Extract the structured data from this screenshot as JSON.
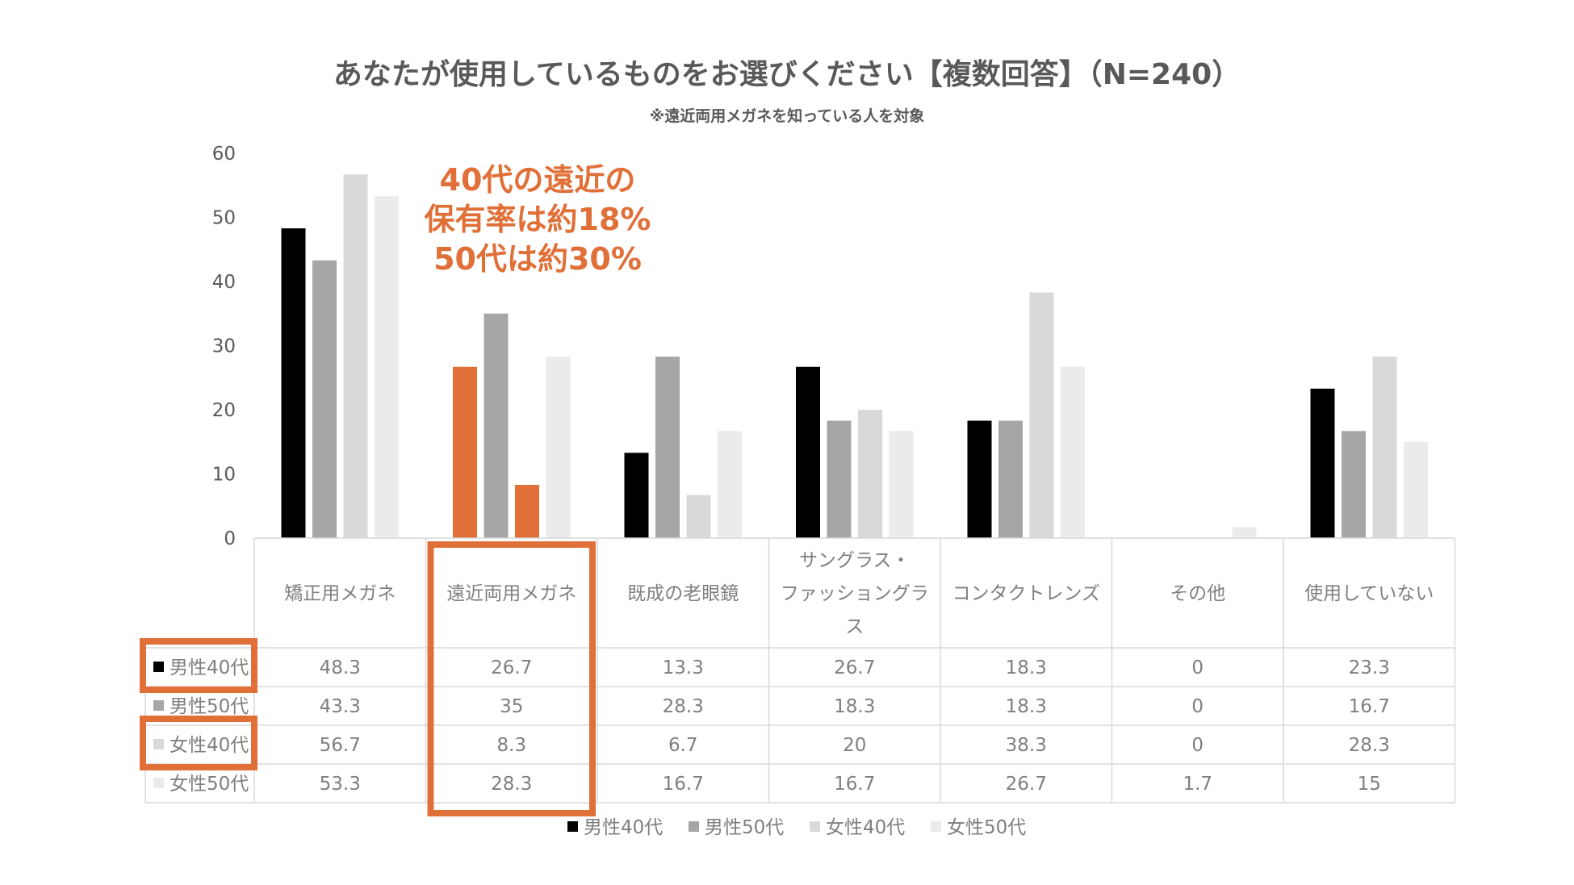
{
  "chart_data": {
    "type": "bar",
    "title": "あなたが使用しているものをお選びください【複数回答】（N=240）",
    "subtitle": "※遠近両用メガネを知っている人を対象",
    "categories": [
      "矯正用メガネ",
      "遠近両用メガネ",
      "既成の老眼鏡",
      "サングラス・ファッショングラス",
      "コンタクトレンズ",
      "その他",
      "使用していない"
    ],
    "category_lines": [
      [
        "矯正用メガネ"
      ],
      [
        "遠近両用メガネ"
      ],
      [
        "既成の老眼鏡"
      ],
      [
        "サングラス・",
        "ファッショングラ",
        "ス"
      ],
      [
        "コンタクトレンズ"
      ],
      [
        "その他"
      ],
      [
        "使用していない"
      ]
    ],
    "series": [
      {
        "name": "男性40代",
        "color": "#000000",
        "values": [
          48.3,
          26.7,
          13.3,
          26.7,
          18.3,
          0,
          23.3
        ],
        "labels": [
          "48.3",
          "26.7",
          "13.3",
          "26.7",
          "18.3",
          "0",
          "23.3"
        ]
      },
      {
        "name": "男性50代",
        "color": "#a6a6a6",
        "values": [
          43.3,
          35,
          28.3,
          18.3,
          18.3,
          0,
          16.7
        ],
        "labels": [
          "43.3",
          "35",
          "28.3",
          "18.3",
          "18.3",
          "0",
          "16.7"
        ]
      },
      {
        "name": "女性40代",
        "color": "#d9d9d9",
        "values": [
          56.7,
          8.3,
          6.7,
          20,
          38.3,
          0,
          28.3
        ],
        "labels": [
          "56.7",
          "8.3",
          "6.7",
          "20",
          "38.3",
          "0",
          "28.3"
        ]
      },
      {
        "name": "女性50代",
        "color": "#ebebeb",
        "values": [
          53.3,
          28.3,
          16.7,
          16.7,
          26.7,
          1.7,
          15
        ],
        "labels": [
          "53.3",
          "28.3",
          "16.7",
          "16.7",
          "26.7",
          "1.7",
          "15"
        ]
      }
    ],
    "highlight": {
      "category_index": 1,
      "series_indices": [
        0,
        2
      ],
      "color": "#e07038"
    },
    "ylim": [
      0,
      60
    ],
    "yticks": [
      0,
      10,
      20,
      30,
      40,
      50,
      60
    ],
    "annotation": [
      "40代の遠近の",
      "保有率は約18%",
      "50代は約30%"
    ],
    "annotation_color": "#e07038",
    "legend_position": "bottom",
    "data_table": true
  }
}
